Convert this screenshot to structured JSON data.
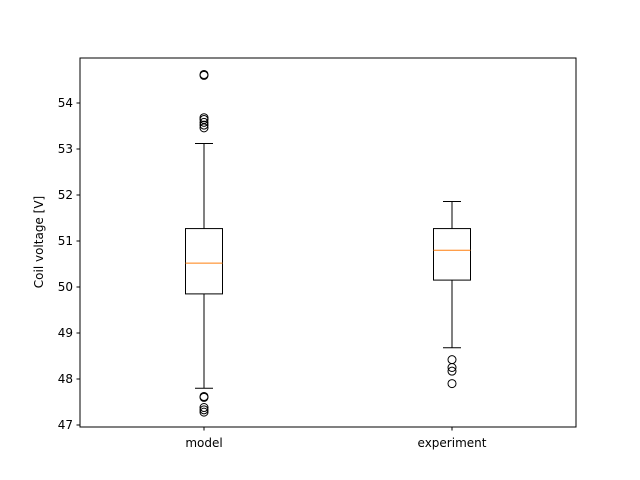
{
  "chart_data": {
    "type": "box",
    "ylabel": "Coil voltage [V]",
    "ylim": [
      46.93,
      64.97
    ],
    "yticks": [
      47,
      48,
      49,
      50,
      51,
      52,
      53,
      54
    ],
    "categories": [
      "model",
      "experiment"
    ],
    "grid": false,
    "boxes": [
      {
        "category": "model",
        "whisker_low": 47.8,
        "q1": 49.85,
        "median": 50.52,
        "q3": 51.27,
        "whisker_high": 53.12,
        "fliers": [
          47.28,
          47.33,
          47.38,
          47.6,
          47.62,
          53.46,
          53.52,
          53.58,
          53.64,
          53.68,
          54.6,
          54.62
        ]
      },
      {
        "category": "experiment",
        "whisker_low": 48.68,
        "q1": 50.15,
        "median": 50.8,
        "q3": 51.27,
        "whisker_high": 51.86,
        "fliers": [
          47.9,
          48.17,
          48.25,
          48.42
        ]
      }
    ],
    "colors": {
      "box": "#000000",
      "median": "#ff7f0e"
    }
  }
}
